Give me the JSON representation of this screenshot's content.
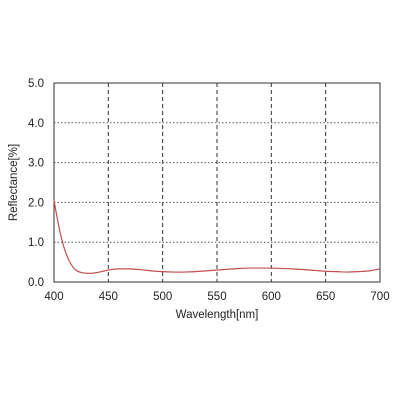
{
  "chart_data": {
    "type": "line",
    "title": "",
    "xlabel": "Wavelength[nm]",
    "ylabel": "Reflectance[%]",
    "xlim": [
      400,
      700
    ],
    "ylim": [
      0.0,
      5.0
    ],
    "x_ticks": [
      400,
      450,
      500,
      550,
      600,
      650,
      700
    ],
    "x_tick_labels": [
      "400",
      "450",
      "500",
      "550",
      "600",
      "650",
      "700"
    ],
    "y_ticks": [
      0.0,
      1.0,
      2.0,
      3.0,
      4.0,
      5.0
    ],
    "y_tick_labels": [
      "0.0",
      "1.0",
      "2.0",
      "3.0",
      "4.0",
      "5.0"
    ],
    "grid": true,
    "grid_style": "dashed",
    "legend": "none",
    "series": [
      {
        "color": "#c0504d",
        "x": [
          400,
          403,
          406,
          410,
          415,
          420,
          425,
          430,
          435,
          440,
          445,
          450,
          455,
          460,
          465,
          470,
          475,
          480,
          490,
          500,
          510,
          520,
          530,
          540,
          550,
          560,
          570,
          580,
          590,
          600,
          610,
          620,
          630,
          640,
          650,
          660,
          670,
          680,
          690,
          700
        ],
        "values": [
          2.05,
          1.6,
          1.2,
          0.8,
          0.48,
          0.3,
          0.24,
          0.22,
          0.22,
          0.24,
          0.27,
          0.3,
          0.32,
          0.33,
          0.33,
          0.33,
          0.32,
          0.31,
          0.28,
          0.26,
          0.25,
          0.25,
          0.26,
          0.28,
          0.3,
          0.32,
          0.34,
          0.35,
          0.35,
          0.35,
          0.34,
          0.33,
          0.31,
          0.29,
          0.27,
          0.26,
          0.25,
          0.26,
          0.28,
          0.33
        ]
      }
    ]
  }
}
